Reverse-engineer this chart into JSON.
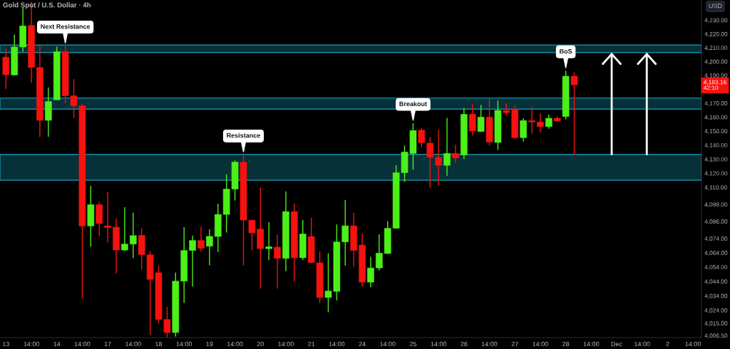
{
  "chart_data": {
    "type": "candlestick",
    "title": "Gold Spot / U.S. Dollar · 4h",
    "ylabel": "USD",
    "categories": [
      "13",
      null,
      null,
      "14:00",
      null,
      null,
      "14",
      null,
      null,
      "14:00",
      null,
      null,
      "17",
      null,
      null,
      "14:00",
      null,
      null,
      "18",
      null,
      null,
      "14:00",
      null,
      null,
      "19",
      null,
      null,
      "14:00",
      null,
      null,
      "20",
      null,
      null,
      "14:00",
      null,
      null,
      "21",
      null,
      null,
      "14:00",
      null,
      null,
      "24",
      null,
      null,
      "14:00",
      null,
      null,
      "25",
      null,
      null,
      "14:00",
      null,
      null,
      "26",
      null,
      null,
      "14:00",
      null,
      null,
      "27",
      null,
      null,
      "14:00",
      null,
      null,
      "28",
      null,
      null,
      "14:00",
      null,
      null,
      "Dec",
      null,
      null,
      "14:00",
      null,
      null,
      "2",
      null,
      null,
      "14:00"
    ],
    "ohlc": [
      [
        4203.2,
        4209.3,
        4180.2,
        4190.4
      ],
      [
        4190.3,
        4219.6,
        4190.0,
        4210.5
      ],
      [
        4210.5,
        4239.3,
        4207.1,
        4225.8
      ],
      [
        4226.2,
        4243.3,
        4184.6,
        4195.7
      ],
      [
        4195.7,
        4211.8,
        4145.7,
        4157.7
      ],
      [
        4157.7,
        4181.3,
        4146.0,
        4171.2
      ],
      [
        4172.4,
        4210.8,
        4172.2,
        4207.1
      ],
      [
        4207.1,
        4211.3,
        4169.9,
        4175.3
      ],
      [
        4175.3,
        4187.4,
        4159.4,
        4168.0
      ],
      [
        4168.0,
        4169.7,
        4032.0,
        4082.8
      ],
      [
        4082.8,
        4111.1,
        4068.2,
        4097.8
      ],
      [
        4097.8,
        4099.9,
        4075.5,
        4084.5
      ],
      [
        4082.9,
        4106.9,
        4071.3,
        4081.7
      ],
      [
        4081.9,
        4087.9,
        4049.7,
        4065.9
      ],
      [
        4065.9,
        4096.0,
        4065.2,
        4070.1
      ],
      [
        4070.1,
        4092.1,
        4060.4,
        4076.0
      ],
      [
        4076.2,
        4081.1,
        4052.1,
        4062.7
      ],
      [
        4062.6,
        4064.9,
        4006.9,
        4045.4
      ],
      [
        4050.1,
        4055.0,
        4015.0,
        4017.6
      ],
      [
        4017.6,
        4026.3,
        4005.3,
        4008.6
      ],
      [
        4008.6,
        4050.1,
        4005.8,
        4044.2
      ],
      [
        4044.2,
        4081.9,
        4029.1,
        4065.6
      ],
      [
        4065.6,
        4076.0,
        4040.5,
        4072.6
      ],
      [
        4072.6,
        4082.4,
        4064.8,
        4067.1
      ],
      [
        4068.6,
        4080.6,
        4055.3,
        4075.5
      ],
      [
        4075.4,
        4098.5,
        4064.5,
        4090.9
      ],
      [
        4090.9,
        4119.2,
        4078.2,
        4108.8
      ],
      [
        4108.8,
        4129.1,
        4100.7,
        4127.9
      ],
      [
        4127.9,
        4133.1,
        4055.3,
        4086.9
      ],
      [
        4086.9,
        4087.1,
        4065.7,
        4077.9
      ],
      [
        4080.6,
        4109.9,
        4039.0,
        4066.9
      ],
      [
        4066.9,
        4085.5,
        4058.9,
        4068.2
      ],
      [
        4067.9,
        4076.5,
        4039.0,
        4060.1
      ],
      [
        4060.1,
        4107.1,
        4051.2,
        4092.9
      ],
      [
        4092.9,
        4098.7,
        4043.9,
        4060.5
      ],
      [
        4060.5,
        4087.0,
        4058.9,
        4077.2
      ],
      [
        4075.4,
        4088.7,
        4056.9,
        4057.2
      ],
      [
        4057.0,
        4064.9,
        4029.1,
        4032.8
      ],
      [
        4032.8,
        4063.6,
        4022.6,
        4037.3
      ],
      [
        4037.1,
        4083.9,
        4030.8,
        4071.6
      ],
      [
        4071.6,
        4101.0,
        4055.0,
        4082.9
      ],
      [
        4082.9,
        4092.1,
        4054.2,
        4065.7
      ],
      [
        4069.4,
        4077.7,
        4040.5,
        4043.5
      ],
      [
        4043.5,
        4061.2,
        4040.0,
        4053.4
      ],
      [
        4053.4,
        4076.9,
        4051.7,
        4063.7
      ],
      [
        4063.5,
        4086.0,
        4063.3,
        4081.2
      ],
      [
        4081.2,
        4125.7,
        4081.0,
        4120.4
      ],
      [
        4120.4,
        4139.8,
        4113.8,
        4135.1
      ],
      [
        4134.1,
        4155.6,
        4122.5,
        4150.4
      ],
      [
        4150.7,
        4152.1,
        4138.5,
        4141.7
      ],
      [
        4141.4,
        4145.8,
        4109.6,
        4131.3
      ],
      [
        4131.3,
        4150.9,
        4111.1,
        4125.6
      ],
      [
        4125.6,
        4159.5,
        4118.2,
        4134.1
      ],
      [
        4134.1,
        4140.2,
        4127.6,
        4130.8
      ],
      [
        4133.0,
        4166.5,
        4130.1,
        4162.0
      ],
      [
        4162.1,
        4169.4,
        4147.0,
        4150.0
      ],
      [
        4149.7,
        4168.7,
        4149.4,
        4160.0
      ],
      [
        4160.0,
        4173.2,
        4139.8,
        4142.2
      ],
      [
        4141.9,
        4171.9,
        4136.5,
        4164.8
      ],
      [
        4164.7,
        4169.9,
        4161.4,
        4163.2
      ],
      [
        4165.5,
        4168.5,
        4144.5,
        4145.3
      ],
      [
        4145.3,
        4159.2,
        4142.6,
        4157.5
      ],
      [
        4157.5,
        4167.4,
        4148.3,
        4156.5
      ],
      [
        4156.5,
        4162.6,
        4149.0,
        4153.2
      ],
      [
        4153.2,
        4161.7,
        4151.7,
        4159.2
      ],
      [
        4159.2,
        4160.6,
        4157.0,
        4157.2
      ],
      [
        4160.4,
        4193.4,
        4158.4,
        4189.4
      ],
      [
        4189.4,
        4192.2,
        4133.0,
        4183.16
      ],
      null,
      null,
      null,
      null,
      null,
      null,
      null,
      null,
      null,
      null,
      null,
      null,
      null,
      null
    ],
    "colors": [
      "#f5120f",
      "#4cf018",
      "#4cf018",
      "#f5120f",
      "#f5120f",
      "#4cf018",
      "#4cf018",
      "#f5120f",
      "#f5120f",
      "#f5120f",
      "#4cf018",
      "#f5120f",
      "#f5120f",
      "#f5120f",
      "#4cf018",
      "#4cf018",
      "#f5120f",
      "#f5120f",
      "#f5120f",
      "#f5120f",
      "#4cf018",
      "#4cf018",
      "#4cf018",
      "#f5120f",
      "#4cf018",
      "#4cf018",
      "#4cf018",
      "#4cf018",
      "#f5120f",
      "#f5120f",
      "#f5120f",
      "#4cf018",
      "#f5120f",
      "#4cf018",
      "#f5120f",
      "#4cf018",
      "#f5120f",
      "#f5120f",
      "#4cf018",
      "#4cf018",
      "#4cf018",
      "#f5120f",
      "#f5120f",
      "#4cf018",
      "#4cf018",
      "#4cf018",
      "#4cf018",
      "#4cf018",
      "#4cf018",
      "#f5120f",
      "#f5120f",
      "#f5120f",
      "#4cf018",
      "#f5120f",
      "#4cf018",
      "#f5120f",
      "#4cf018",
      "#f5120f",
      "#4cf018",
      "#f5120f",
      "#f5120f",
      "#4cf018",
      "#f5120f",
      "#f5120f",
      "#4cf018",
      "#f5120f",
      "#4cf018",
      "#f5120f",
      null,
      null,
      null,
      null,
      null,
      null,
      null,
      null,
      null,
      null,
      null,
      null,
      null,
      null
    ],
    "log": true,
    "ylim": [
      4005.1,
      4244.7
    ],
    "yticks": [
      {
        "value": 4230,
        "label": "4,230.00"
      },
      {
        "value": 4220,
        "label": "4,220.00"
      },
      {
        "value": 4210,
        "label": "4,210.00"
      },
      {
        "value": 4200,
        "label": "4,200.00"
      },
      {
        "value": 4190,
        "label": "4,190.00"
      },
      {
        "value": 4170,
        "label": "4,170.00"
      },
      {
        "value": 4160,
        "label": "4,160.00"
      },
      {
        "value": 4150,
        "label": "4,150.00"
      },
      {
        "value": 4140,
        "label": "4,140.00"
      },
      {
        "value": 4130,
        "label": "4,130.00"
      },
      {
        "value": 4120,
        "label": "4,120.00"
      },
      {
        "value": 4110,
        "label": "4,110.00"
      },
      {
        "value": 4098,
        "label": "4,098.00"
      },
      {
        "value": 4086,
        "label": "4,086.00"
      },
      {
        "value": 4074,
        "label": "4,074.00"
      },
      {
        "value": 4064,
        "label": "4,064.00"
      },
      {
        "value": 4054,
        "label": "4,054.00"
      },
      {
        "value": 4044,
        "label": "4,044.00"
      },
      {
        "value": 4034,
        "label": "4,034.00"
      },
      {
        "value": 4024,
        "label": "4,024.00"
      },
      {
        "value": 4015,
        "label": "4,015.00"
      },
      {
        "value": 4006.5,
        "label": "4,006.50"
      }
    ],
    "bands": [
      {
        "axis": "y",
        "from": 4206.5,
        "to": 4211.9,
        "color": "#148ca3"
      },
      {
        "axis": "y",
        "from": 4165.7,
        "to": 4173.7,
        "color": "#148ca3"
      },
      {
        "axis": "y",
        "from": 4115.1,
        "to": 4133.4,
        "color": "#148ca3"
      }
    ],
    "annotations": [
      {
        "text": "Next Resistance",
        "y": 4211.3
      },
      {
        "text": "Resistance",
        "y": 4133.1
      },
      {
        "text": "Breakout",
        "y": 4155.6
      },
      {
        "text": "BoS",
        "y": 4193.4
      },
      {
        "text": "4,183.16\n42:10",
        "y": 4183.16
      }
    ]
  }
}
